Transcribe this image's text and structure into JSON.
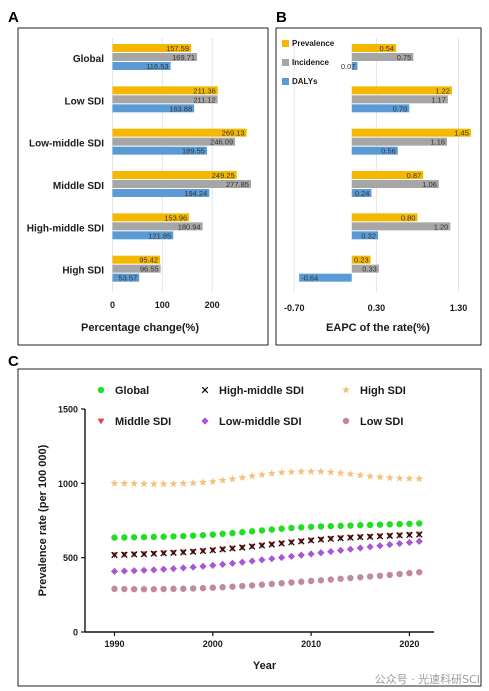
{
  "panels": {
    "a": "A",
    "b": "B",
    "c": "C"
  },
  "colors": {
    "prevalence": "#F5B800",
    "incidence": "#A6A6A6",
    "dalys": "#5B9BD5",
    "global": "#22DD22",
    "high_middle": "#111111",
    "high": "#F3C27F",
    "middle": "#E8413C",
    "low_middle": "#A855D8",
    "low": "#C08A9C"
  },
  "chart_data": [
    {
      "type": "bar",
      "panel": "A",
      "orientation": "horizontal",
      "categories": [
        "Global",
        "Low SDI",
        "Low-middle SDI",
        "Middle SDI",
        "High-middle SDI",
        "High SDI"
      ],
      "series": [
        {
          "key": "prevalence",
          "values": [
            157.59,
            211.36,
            269.13,
            249.25,
            153.96,
            95.42
          ],
          "labels": [
            "157.59",
            "211.36",
            "269.13",
            "249.25",
            "153.96",
            "95.42"
          ]
        },
        {
          "key": "incidence",
          "values": [
            169.71,
            211.12,
            246.09,
            277.85,
            180.94,
            96.55
          ],
          "labels": [
            "169.71",
            "211.12",
            "246.09",
            "277.85",
            "180.94",
            "96.55"
          ]
        },
        {
          "key": "dalys",
          "values": [
            116.53,
            163.88,
            189.55,
            194.24,
            121.85,
            53.57
          ],
          "labels": [
            "116.53",
            "163.88",
            "189.55",
            "194.24",
            "121.85",
            "53.57"
          ]
        }
      ],
      "xlim": [
        -5,
        300
      ],
      "xticks": [
        0,
        100,
        200
      ],
      "xtick_labels": [
        "0",
        "100",
        "200"
      ],
      "xlabel": "Percentage change(%)"
    },
    {
      "type": "bar",
      "panel": "B",
      "orientation": "horizontal",
      "categories": [
        "Global",
        "Low SDI",
        "Low-middle SDI",
        "Middle SDI",
        "High-middle SDI",
        "High SDI"
      ],
      "series": [
        {
          "name": "Prevalence",
          "key": "prevalence",
          "values": [
            0.54,
            1.22,
            1.45,
            0.87,
            0.8,
            0.23
          ],
          "labels": [
            "0.54",
            "1.22",
            "1.45",
            "0.87",
            "0.80",
            "0.23"
          ]
        },
        {
          "name": "Incidence",
          "key": "incidence",
          "values": [
            0.75,
            1.17,
            1.16,
            1.06,
            1.2,
            0.33
          ],
          "labels": [
            "0.75",
            "1.17",
            "1.16",
            "1.06",
            "1.20",
            "0.33"
          ]
        },
        {
          "name": "DALYs",
          "key": "dalys",
          "values": [
            0.07,
            0.7,
            0.56,
            0.24,
            0.32,
            -0.64
          ],
          "labels": [
            "0.07",
            "0.70",
            "0.56",
            "0.24",
            "0.32",
            "-0.64"
          ]
        }
      ],
      "xlim": [
        -0.8,
        1.5
      ],
      "xticks": [
        -0.7,
        0.3,
        1.3
      ],
      "xtick_labels": [
        "-0.70",
        "0.30",
        "1.30"
      ],
      "xlabel": "EAPC of the rate(%)",
      "legend": "top-left"
    },
    {
      "type": "scatter",
      "panel": "C",
      "xlabel": "Year",
      "ylabel": "Prevalence rate (per 100 000)",
      "xlim": [
        1987,
        2022.5
      ],
      "ylim": [
        0,
        1500
      ],
      "xticks": [
        1990,
        2000,
        2010,
        2020
      ],
      "yticks": [
        0,
        500,
        1000,
        1500
      ],
      "x": [
        1990,
        1991,
        1992,
        1993,
        1994,
        1995,
        1996,
        1997,
        1998,
        1999,
        2000,
        2001,
        2002,
        2003,
        2004,
        2005,
        2006,
        2007,
        2008,
        2009,
        2010,
        2011,
        2012,
        2013,
        2014,
        2015,
        2016,
        2017,
        2018,
        2019,
        2020,
        2021
      ],
      "legend": "top",
      "series": [
        {
          "name": "Global",
          "key": "global",
          "marker": "circle",
          "values": [
            635,
            636,
            637,
            638,
            639,
            641,
            643,
            645,
            648,
            651,
            655,
            660,
            665,
            671,
            677,
            683,
            689,
            695,
            700,
            704,
            707,
            710,
            712,
            714,
            716,
            718,
            720,
            722,
            724,
            726,
            728,
            730
          ]
        },
        {
          "name": "High-middle SDI",
          "key": "high_middle",
          "marker": "x",
          "values": [
            518,
            520,
            522,
            524,
            527,
            530,
            533,
            536,
            540,
            545,
            550,
            556,
            562,
            568,
            575,
            582,
            589,
            596,
            603,
            610,
            616,
            622,
            627,
            631,
            635,
            638,
            641,
            644,
            647,
            650,
            653,
            656
          ]
        },
        {
          "name": "High SDI",
          "key": "high",
          "marker": "star",
          "values": [
            1000,
            999,
            998,
            997,
            996,
            996,
            997,
            999,
            1002,
            1006,
            1012,
            1020,
            1029,
            1039,
            1049,
            1058,
            1066,
            1072,
            1076,
            1079,
            1080,
            1079,
            1075,
            1069,
            1062,
            1055,
            1048,
            1042,
            1037,
            1034,
            1032,
            1031
          ]
        },
        {
          "name": "Middle SDI",
          "key": "middle",
          "marker": "triangle-down",
          "values": [
            520,
            522,
            524,
            526,
            529,
            532,
            535,
            538,
            542,
            547,
            552,
            558,
            564,
            570,
            577,
            584,
            591,
            598,
            605,
            612,
            618,
            624,
            629,
            633,
            637,
            640,
            643,
            646,
            649,
            652,
            655,
            658
          ]
        },
        {
          "name": "Low-middle SDI",
          "key": "low_middle",
          "marker": "diamond",
          "values": [
            408,
            410,
            412,
            415,
            418,
            422,
            426,
            431,
            436,
            442,
            448,
            455,
            462,
            469,
            477,
            485,
            493,
            501,
            509,
            517,
            525,
            533,
            541,
            549,
            557,
            565,
            573,
            580,
            588,
            595,
            602,
            610
          ]
        },
        {
          "name": "Low SDI",
          "key": "low",
          "marker": "circle",
          "values": [
            290,
            289,
            288,
            288,
            288,
            289,
            290,
            291,
            293,
            295,
            298,
            301,
            305,
            309,
            313,
            318,
            323,
            328,
            333,
            338,
            343,
            348,
            353,
            358,
            363,
            368,
            373,
            378,
            384,
            390,
            396,
            402
          ]
        }
      ]
    }
  ],
  "watermark": "公众号 · 光速科研SCI"
}
